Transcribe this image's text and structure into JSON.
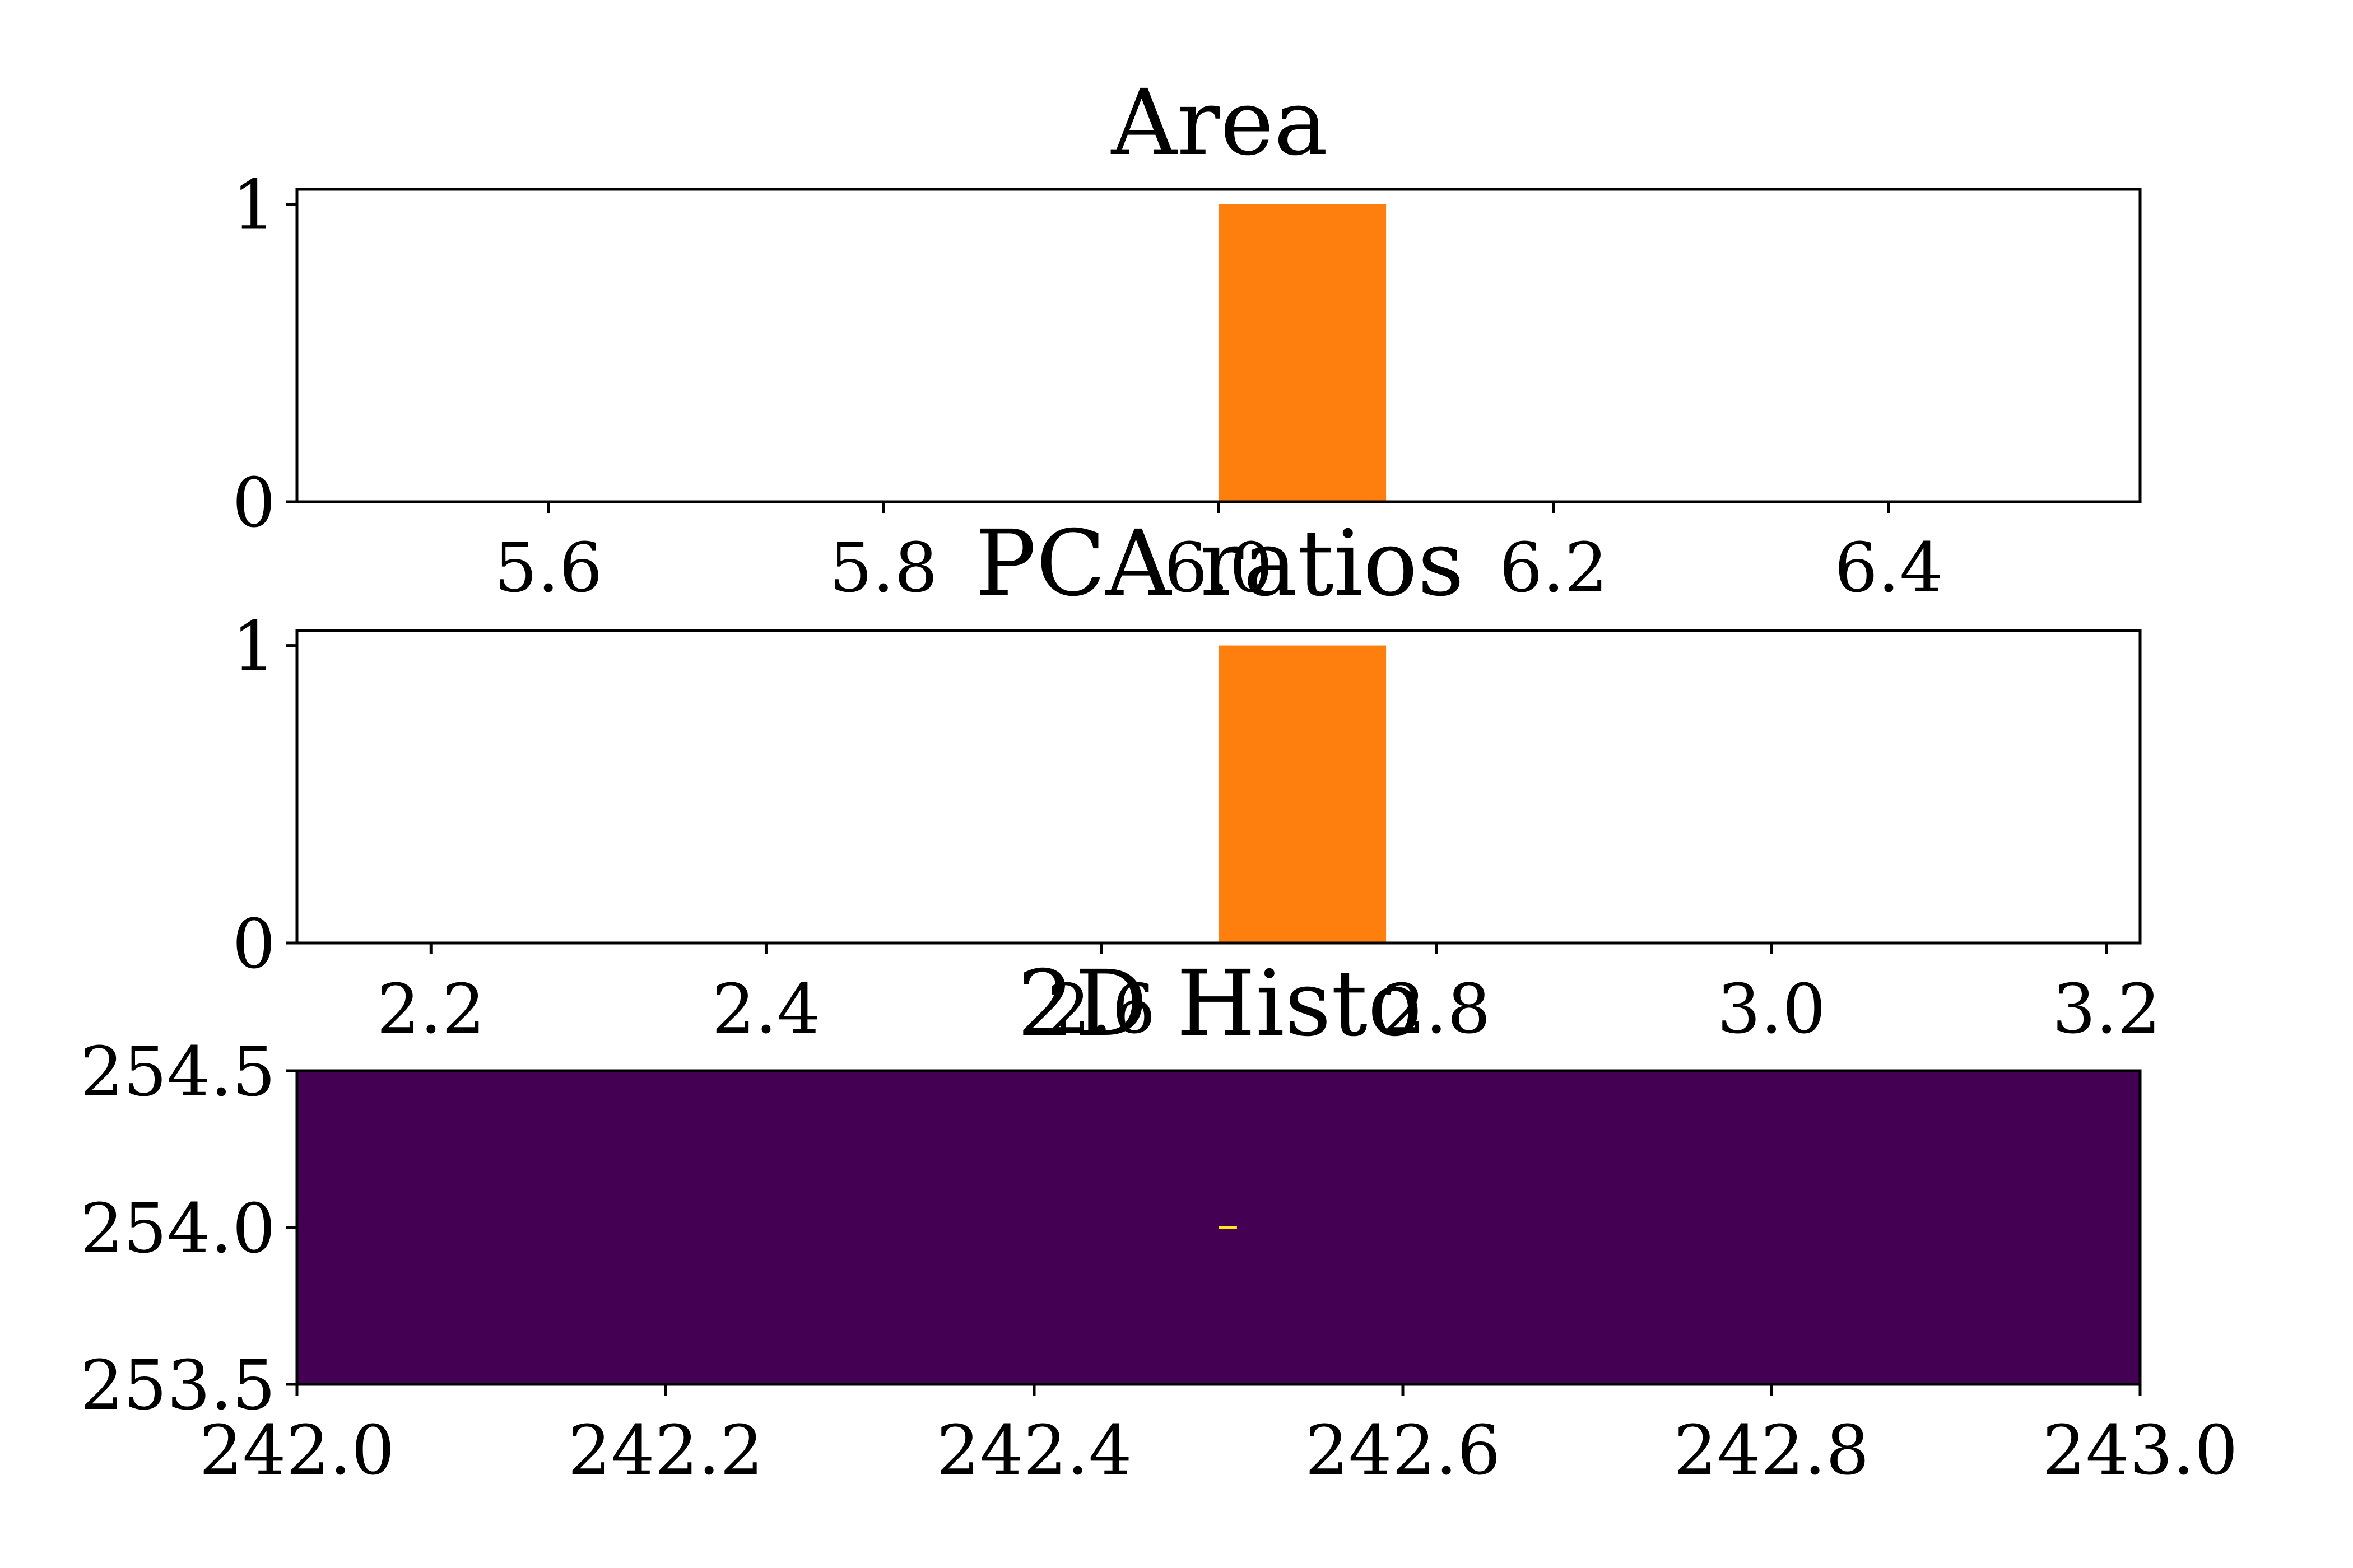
{
  "colors": {
    "bar": "#ff7f0e",
    "heatmap_background": "#440154",
    "heatmap_peak": "#fde725",
    "axes": "#000000"
  },
  "chart_data": [
    {
      "type": "bar",
      "title": "Area",
      "xlabel": "",
      "ylabel": "",
      "xlim": [
        5.45,
        6.55
      ],
      "ylim": [
        0,
        1.05
      ],
      "xticks": [
        "5.6",
        "5.8",
        "6.0",
        "6.2",
        "6.4"
      ],
      "yticks": [
        "0",
        "1"
      ],
      "bars": [
        {
          "x0": 6.0,
          "x1": 6.1,
          "value": 1
        }
      ]
    },
    {
      "type": "bar",
      "title": "PCA ratios",
      "xlabel": "",
      "ylabel": "",
      "xlim": [
        2.12,
        3.22
      ],
      "ylim": [
        0,
        1.05
      ],
      "xticks": [
        "2.2",
        "2.4",
        "2.6",
        "2.8",
        "3.0",
        "3.2"
      ],
      "yticks": [
        "0",
        "1"
      ],
      "bars": [
        {
          "x0": 2.67,
          "x1": 2.77,
          "value": 1
        }
      ]
    },
    {
      "type": "heatmap",
      "title": "2D Histo",
      "xlabel": "",
      "ylabel": "",
      "xlim": [
        242.0,
        243.0
      ],
      "ylim": [
        253.5,
        254.5
      ],
      "xticks": [
        "242.0",
        "242.2",
        "242.4",
        "242.6",
        "242.8",
        "243.0"
      ],
      "yticks": [
        "253.5",
        "254.0",
        "254.5"
      ],
      "cells": [
        {
          "x0": 242.5,
          "x1": 242.51,
          "y0": 253.995,
          "y1": 254.005,
          "value": 1
        }
      ]
    }
  ]
}
